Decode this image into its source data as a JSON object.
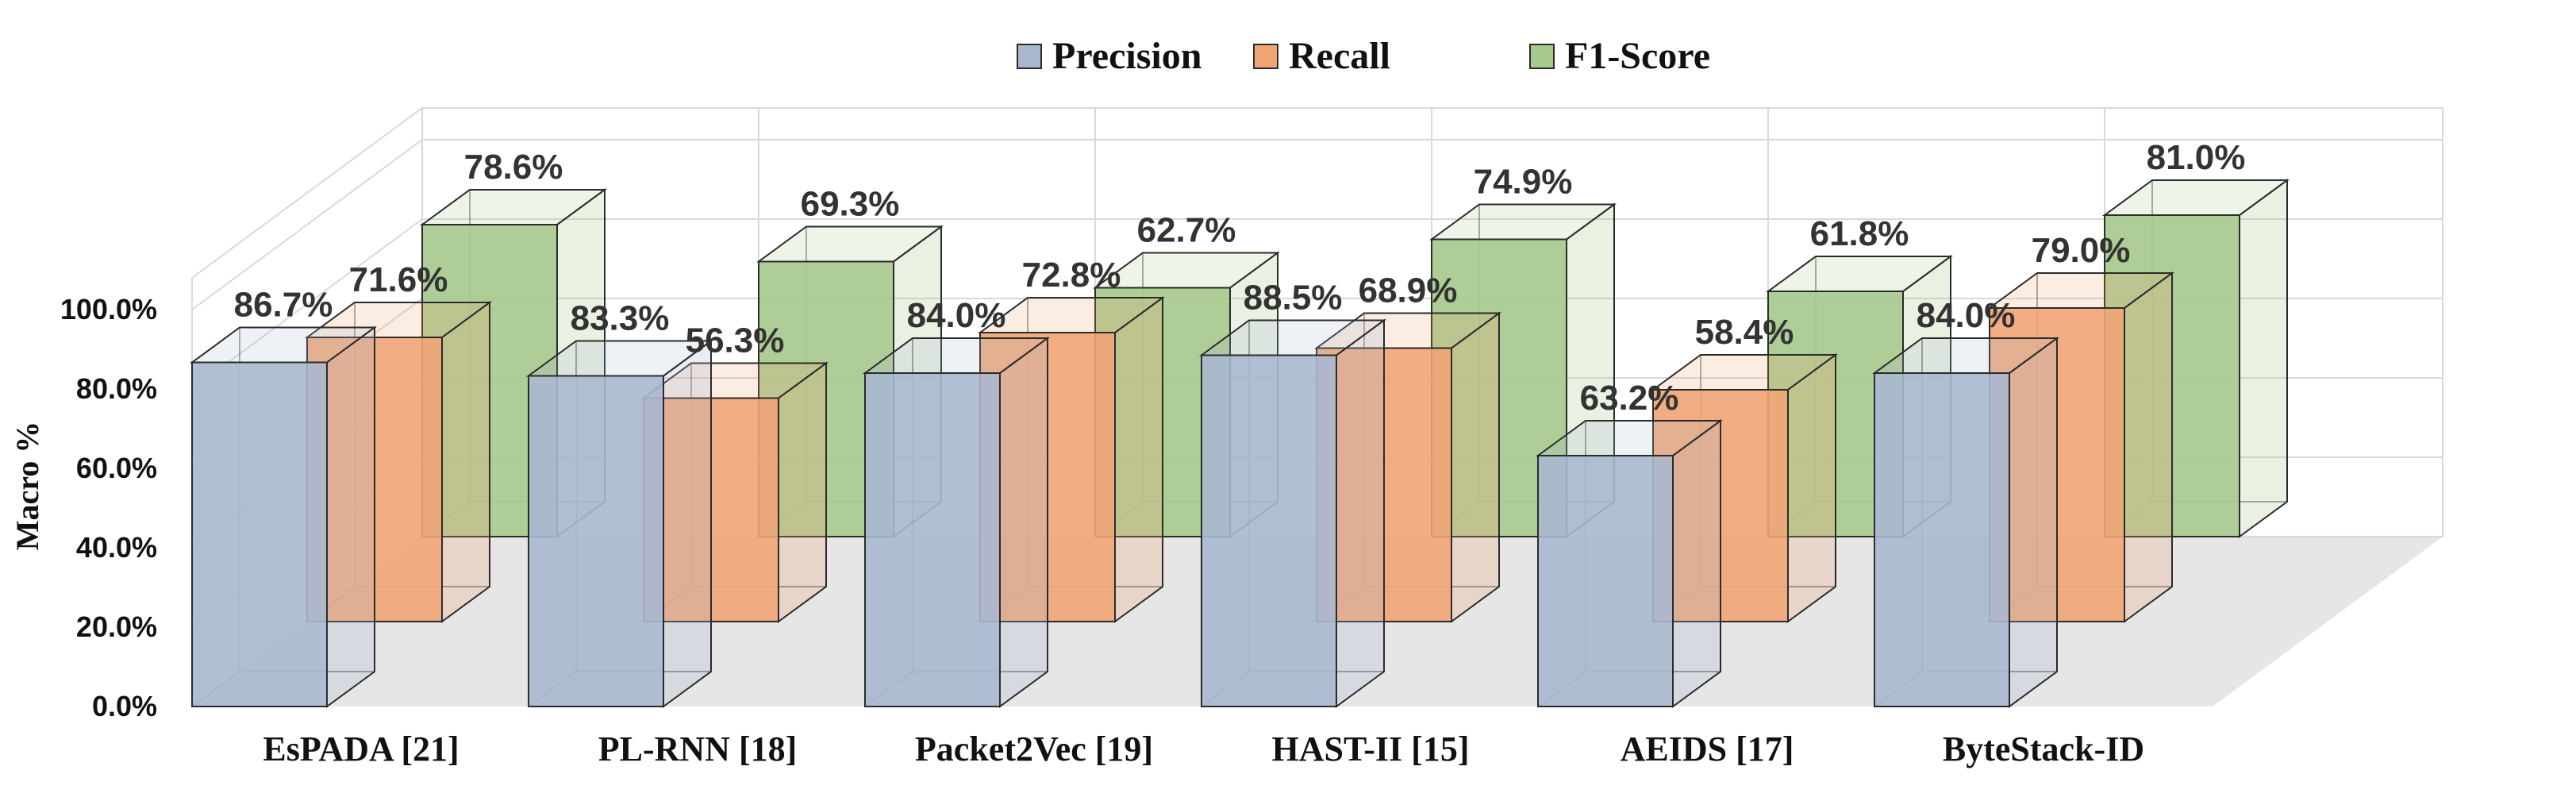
{
  "chart_data": {
    "type": "bar",
    "title": "",
    "xlabel": "",
    "ylabel": "Macro %",
    "ylim": [
      0,
      100
    ],
    "yticks": [
      "0.0%",
      "20.0%",
      "40.0%",
      "60.0%",
      "80.0%",
      "100.0%"
    ],
    "categories": [
      "EsPADA [21]",
      "PL-RNN [18]",
      "Packet2Vec [19]",
      "HAST-II [15]",
      "AEIDS [17]",
      "ByteStack-ID"
    ],
    "series": [
      {
        "name": "Precision",
        "color": "#a9b8cf",
        "values": [
          86.7,
          83.3,
          84.0,
          88.5,
          63.2,
          84.0
        ],
        "labels": [
          "86.7%",
          "83.3%",
          "84.0%",
          "88.5%",
          "63.2%",
          "84.0%"
        ]
      },
      {
        "name": "Recall",
        "color": "#f1a574",
        "values": [
          71.6,
          56.3,
          72.8,
          68.9,
          58.4,
          79.0
        ],
        "labels": [
          "71.6%",
          "56.3%",
          "72.8%",
          "68.9%",
          "58.4%",
          "79.0%"
        ]
      },
      {
        "name": "F1-Score",
        "color": "#a6c98c",
        "values": [
          78.6,
          69.3,
          62.7,
          74.9,
          61.8,
          81.0
        ],
        "labels": [
          "78.6%",
          "69.3%",
          "62.7%",
          "74.9%",
          "61.8%",
          "81.0%"
        ]
      }
    ],
    "legend_position": "top-center",
    "grid": true
  }
}
